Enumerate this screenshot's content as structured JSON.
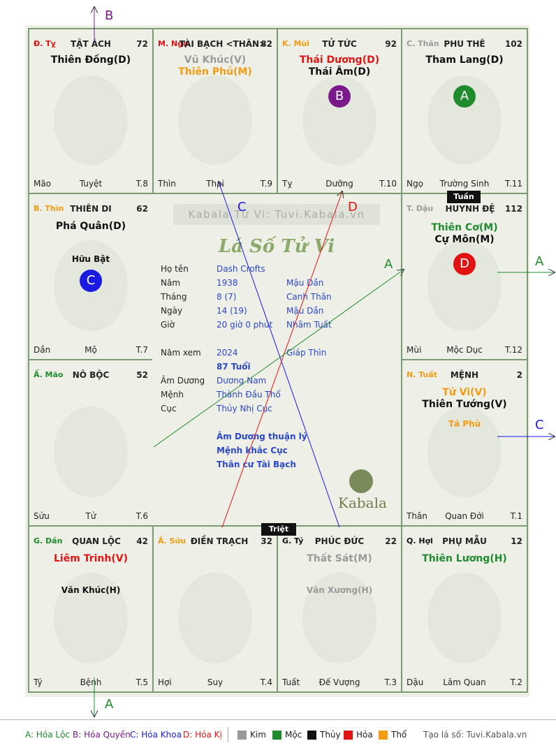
{
  "watermark": "Kabala Tử Vi: Tuvi.Kabala.vn",
  "site_title": "Lá Số Tử Vi",
  "logo_text": "Kabala",
  "tuan": "Tuần",
  "triet": "Triệt",
  "arrow_labels": {
    "b_top": "B",
    "a_right": "A",
    "c_right": "C",
    "a_bottom": "A",
    "c_inner": "C",
    "d_inner": "D",
    "a_inner": "A"
  },
  "palaces": {
    "ty_snake": {
      "branch": "Đ. Tỵ",
      "name": "TẬT ÁCH",
      "age": "72",
      "stars": [
        "Thiên Đồng(D)"
      ],
      "minor": [],
      "life": "Mão",
      "stage": "Tuyệt",
      "month": "T.8"
    },
    "ngo": {
      "branch": "M. Ngọ",
      "name": "TÀI BẠCH <THÂN>",
      "age": "82",
      "stars": [
        "Vũ Khúc(V)",
        "Thiên Phủ(M)"
      ],
      "minor": [],
      "life": "Thìn",
      "stage": "Thai",
      "month": "T.9"
    },
    "mui": {
      "branch": "K. Mùi",
      "name": "TỬ TỨC",
      "age": "92",
      "stars": [
        "Thái Dương(D)",
        "Thái Âm(D)"
      ],
      "badge": "B",
      "life": "Tỵ",
      "stage": "Dưỡng",
      "month": "T.10"
    },
    "than": {
      "branch": "C. Thân",
      "name": "PHU THÊ",
      "age": "102",
      "stars": [
        "Tham Lang(D)"
      ],
      "badge": "A",
      "life": "Ngọ",
      "stage": "Trường Sinh",
      "month": "T.11"
    },
    "thin": {
      "branch": "B. Thìn",
      "name": "THIÊN DI",
      "age": "62",
      "stars": [
        "Phá Quân(D)"
      ],
      "minor": [
        "Hữu Bật"
      ],
      "badge": "C",
      "life": "Dần",
      "stage": "Mộ",
      "month": "T.7"
    },
    "dau": {
      "branch": "T. Dậu",
      "name": "HUYNH ĐỆ",
      "age": "112",
      "stars": [
        "Thiên Cơ(M)",
        "Cự Môn(M)"
      ],
      "badge": "D",
      "life": "Mùi",
      "stage": "Mộc Dục",
      "month": "T.12"
    },
    "mao": {
      "branch": "Ấ. Mão",
      "name": "NÔ BỘC",
      "age": "52",
      "stars": [],
      "life": "Sửu",
      "stage": "Tử",
      "month": "T.6"
    },
    "tuat": {
      "branch": "N. Tuất",
      "name": "MỆNH",
      "age": "2",
      "stars": [
        "Tử Vi(V)",
        "Thiên Tướng(V)"
      ],
      "minor": [
        "Tả Phù"
      ],
      "life": "Thân",
      "stage": "Quan Đới",
      "month": "T.1"
    },
    "dan": {
      "branch": "G. Dần",
      "name": "QUAN LỘC",
      "age": "42",
      "stars": [
        "Liêm Trinh(V)"
      ],
      "minor": [
        "Văn Khúc(H)"
      ],
      "life": "Tý",
      "stage": "Bệnh",
      "month": "T.5"
    },
    "suu": {
      "branch": "Ấ. Sửu",
      "name": "ĐIỀN TRẠCH",
      "age": "32",
      "stars": [],
      "life": "Hợi",
      "stage": "Suy",
      "month": "T.4"
    },
    "ty_rat": {
      "branch": "G. Tý",
      "name": "PHÚC ĐỨC",
      "age": "22",
      "stars": [
        "Thất Sát(M)"
      ],
      "minor": [
        "Văn Xương(H)"
      ],
      "life": "Tuất",
      "stage": "Đế Vượng",
      "month": "T.3"
    },
    "hoi": {
      "branch": "Q. Hợi",
      "name": "PHỤ MẪU",
      "age": "12",
      "stars": [
        "Thiên Lương(H)"
      ],
      "life": "Dậu",
      "stage": "Lâm Quan",
      "month": "T.2"
    }
  },
  "info": {
    "ho_ten": {
      "label": "Họ tên",
      "value": "Dash Crofts"
    },
    "nam": {
      "label": "Năm",
      "value": "1938",
      "can_chi": "Mậu Dần"
    },
    "thang": {
      "label": "Tháng",
      "value": "8  (7)",
      "can_chi": "Canh Thân"
    },
    "ngay": {
      "label": "Ngày",
      "value": "14  (19)",
      "can_chi": "Mậu Dần"
    },
    "gio": {
      "label": "Giờ",
      "value": "20 giờ 0 phút",
      "can_chi": "Nhâm Tuất"
    },
    "nam_xem": {
      "label": "Năm xem",
      "value": "2024",
      "can_chi": "Giáp Thìn"
    },
    "tuoi": "87 Tuổi",
    "am_duong": {
      "label": "Âm Dương",
      "value": "Dương Nam"
    },
    "menh": {
      "label": "Mệnh",
      "value": "Thành Đầu Thổ"
    },
    "cuc": {
      "label": "Cục",
      "value": "Thủy Nhị Cục"
    },
    "notes": [
      "Âm Dương thuận lý",
      "Mệnh khắc Cục",
      "Thân cư Tài Bạch"
    ]
  },
  "legend": {
    "hoa_loc": "A: Hóa Lộc",
    "hoa_quyen": "B: Hóa Quyền",
    "hoa_khoa": "C: Hóa Khoa",
    "hoa_ki": "D: Hóa Kị",
    "kim": "Kim",
    "moc": "Mộc",
    "thuy": "Thủy",
    "hoa": "Hỏa",
    "tho": "Thổ",
    "site": "Tạo lá số: Tuvi.Kabala.vn"
  },
  "colors": {
    "kim": "#9a9a9a",
    "moc": "#1e8c2d",
    "thuy": "#111111",
    "hoa": "#e11414",
    "tho": "#f29b13",
    "badge_a": "#1e8c2d",
    "badge_b": "#7a1a8a",
    "badge_c": "#1a1ae0",
    "badge_d": "#e11414"
  }
}
